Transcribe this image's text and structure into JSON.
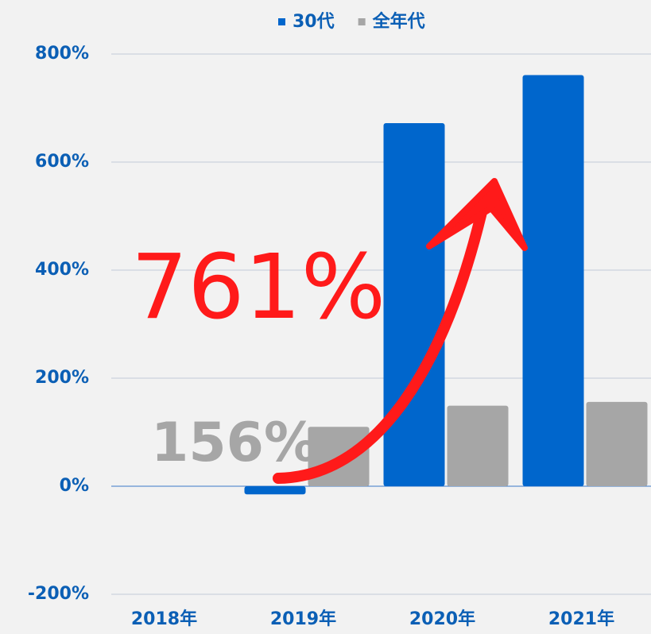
{
  "chart_data": {
    "type": "bar",
    "categories": [
      "2018年",
      "2019年",
      "2020年",
      "2021年"
    ],
    "series": [
      {
        "name": "30代",
        "color": "#0066cc",
        "values": [
          null,
          -15,
          672,
          761
        ]
      },
      {
        "name": "全年代",
        "color": "#a6a6a6",
        "values": [
          null,
          110,
          149,
          156
        ]
      }
    ],
    "ylim": [
      -200,
      800
    ],
    "yticks": [
      {
        "value": -200,
        "label": "-200%"
      },
      {
        "value": 0,
        "label": "0%"
      },
      {
        "value": 200,
        "label": "200%"
      },
      {
        "value": 400,
        "label": "400%"
      },
      {
        "value": 600,
        "label": "600%"
      },
      {
        "value": 800,
        "label": "800%"
      }
    ],
    "grid": true,
    "legend": "top",
    "annotations": [
      "761%",
      "156%"
    ]
  }
}
